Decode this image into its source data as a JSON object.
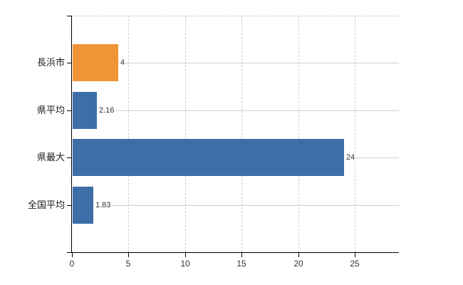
{
  "chart_data": {
    "type": "bar",
    "orientation": "horizontal",
    "title": "",
    "xlabel": "",
    "ylabel": "",
    "categories": [
      "長浜市",
      "県平均",
      "県最大",
      "全国平均"
    ],
    "values": [
      4,
      2.16,
      24,
      1.83
    ],
    "value_labels": [
      "4",
      "2.16",
      "24",
      "1.83"
    ],
    "bar_colors": [
      "#ef9538",
      "#3d6ea8",
      "#3d6ea8",
      "#3d6ea8"
    ],
    "x_tick_labels": [
      "0",
      "5",
      "10",
      "15",
      "20",
      "25"
    ],
    "x_tick_values": [
      0,
      5,
      10,
      15,
      20,
      25
    ],
    "xlim": [
      0,
      28.9
    ],
    "grid": true,
    "legend": false
  },
  "colors": {
    "bar_orange": "#ef9538",
    "bar_blue": "#3d6ea8",
    "axis": "#000000",
    "vertical_gridline": "#cccccc",
    "horizontal_gridline": "#ccd1cb",
    "tick_text": "#333333",
    "category_text": "#1a1a1a",
    "background": "#ffffff"
  }
}
